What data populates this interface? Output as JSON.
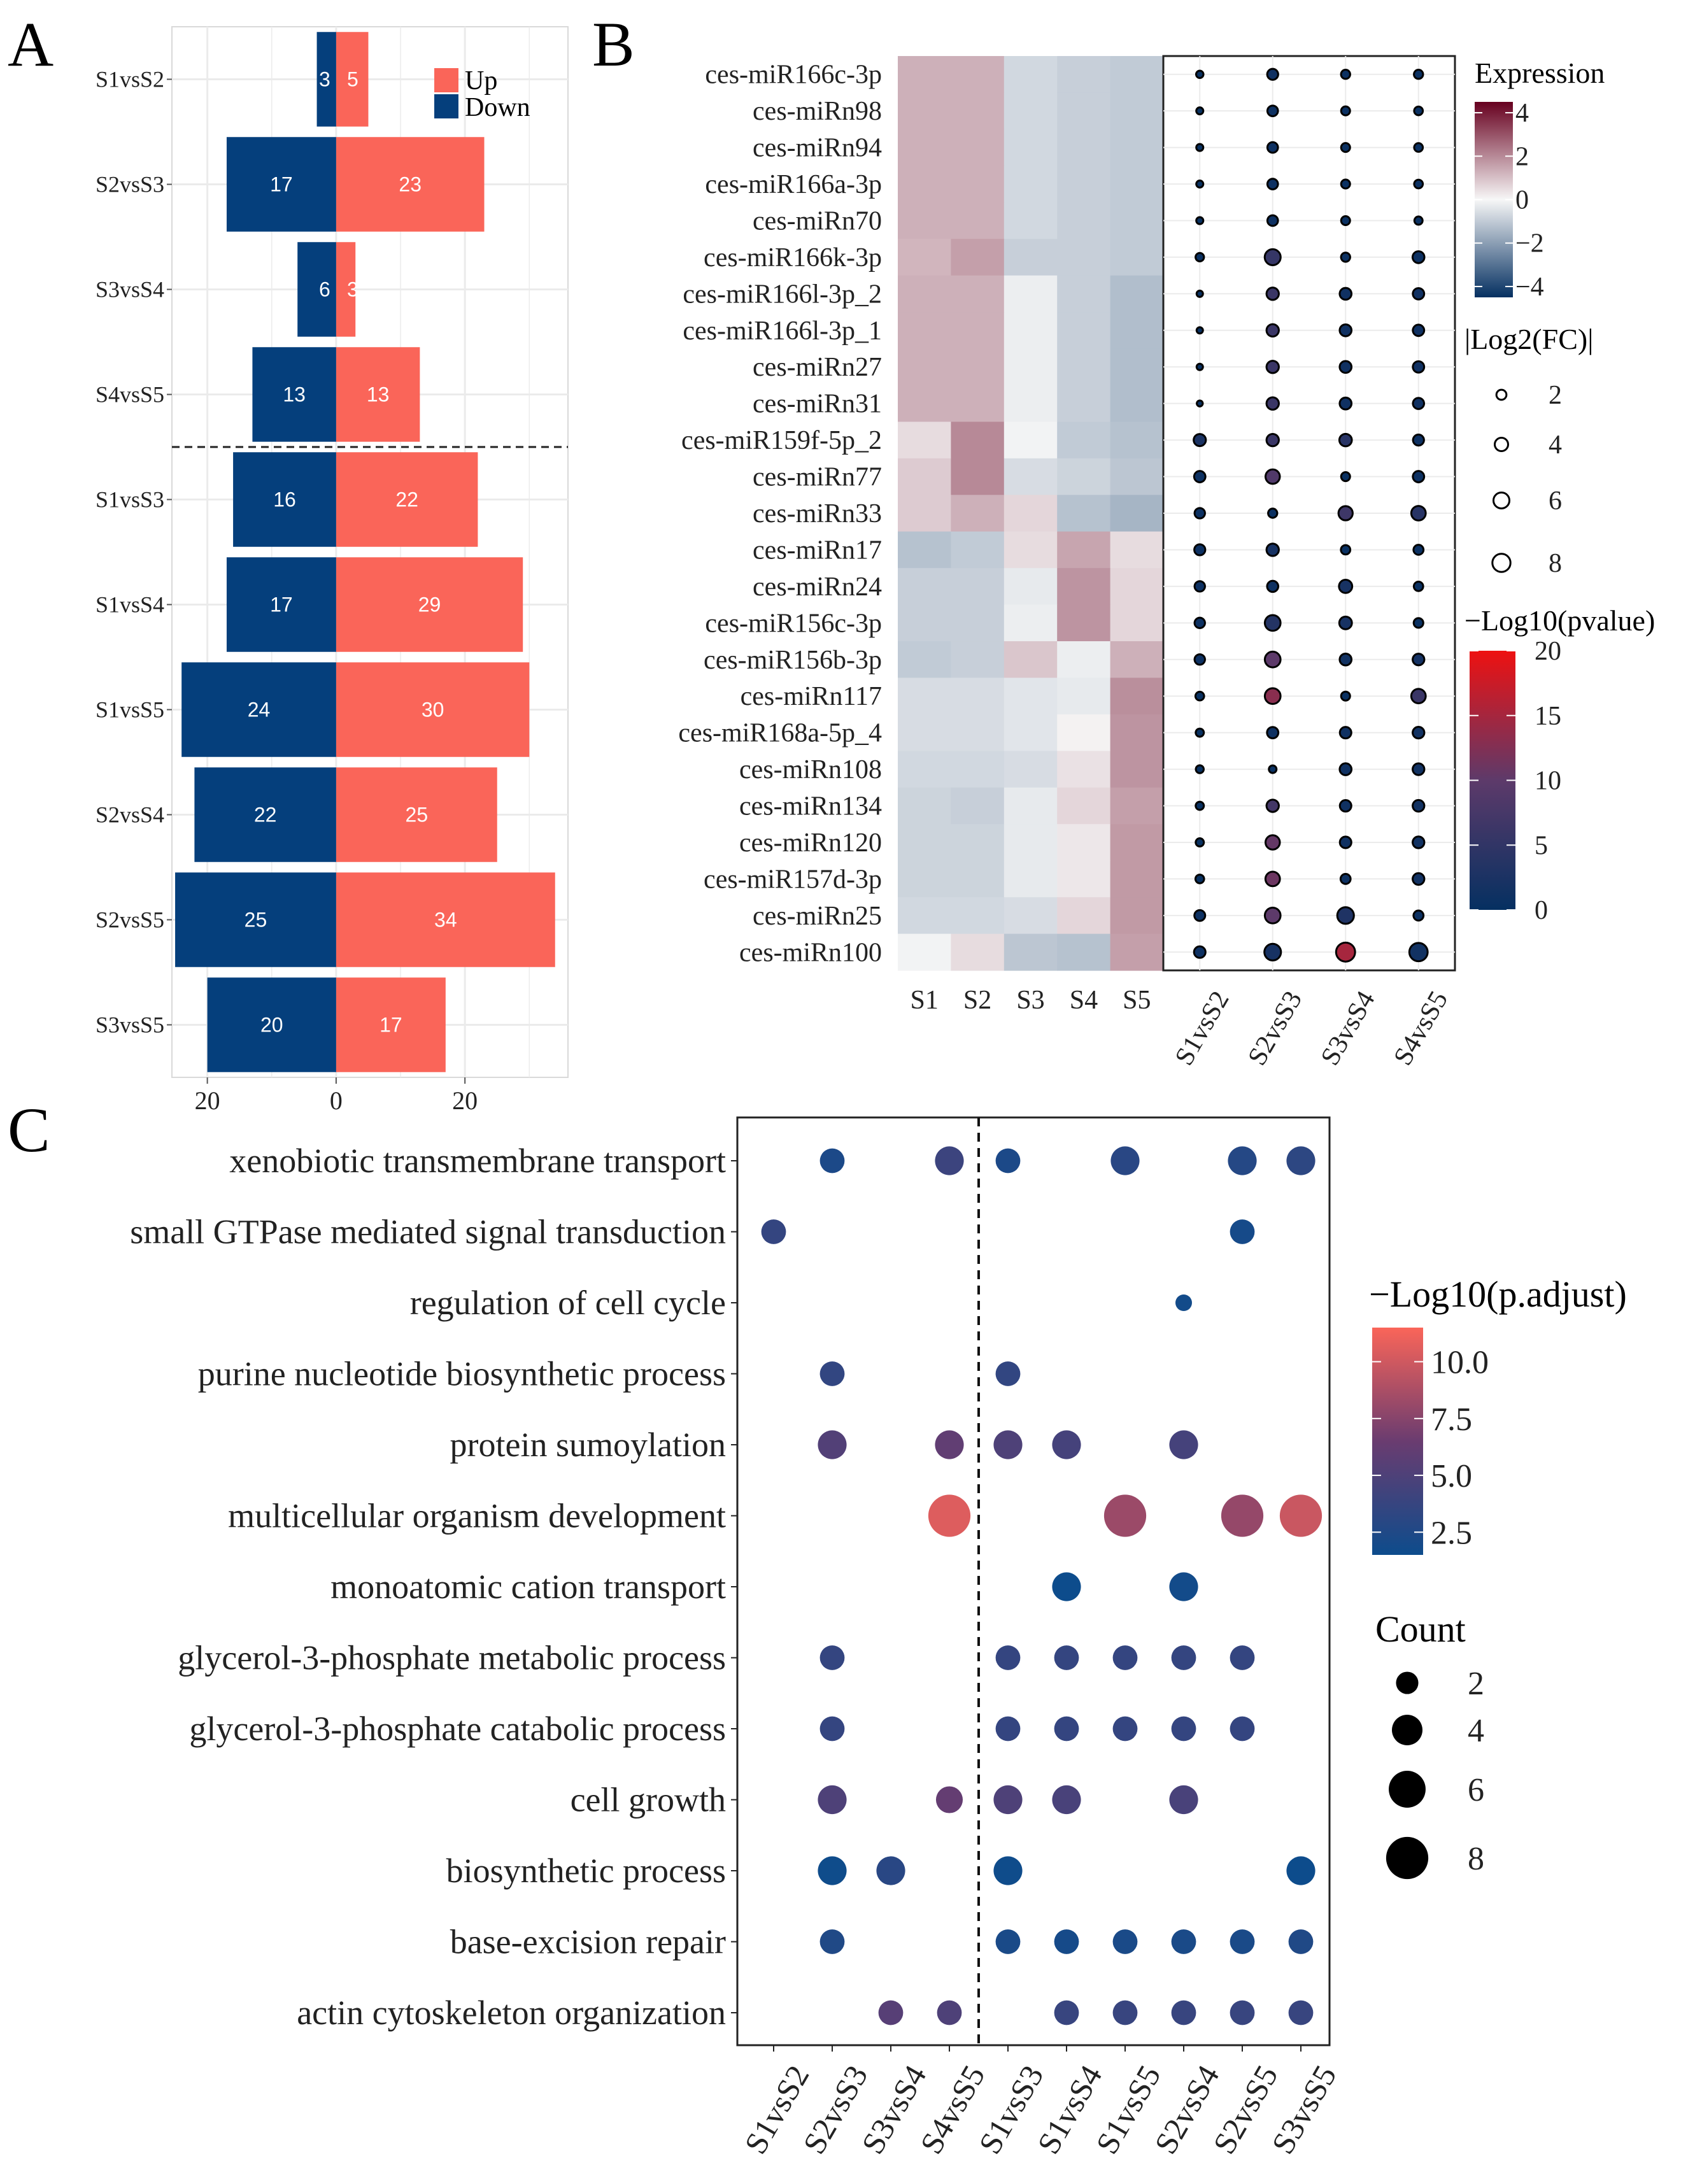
{
  "panel_labels": {
    "a": "A",
    "b": "B",
    "c": "C"
  },
  "colors": {
    "up": "#FA6559",
    "down": "#053F7C",
    "grid": "#EBEBEB",
    "heat_low": "#053061",
    "heat_mid": "#F7F7F7",
    "heat_high": "#67001F",
    "pv_low": "#053061",
    "pv_mid": "#5D3A6A",
    "pv_high": "#EE1111",
    "go_low": "#0D4C8C",
    "go_mid": "#6A3C70",
    "go_high": "#FA6559"
  },
  "chart_data": [
    {
      "id": "A",
      "type": "bar",
      "orientation": "horizontal",
      "title": "",
      "categories": [
        "S1vsS2",
        "S2vsS3",
        "S3vsS4",
        "S4vsS5",
        "S1vsS3",
        "S1vsS4",
        "S1vsS5",
        "S2vsS4",
        "S2vsS5",
        "S3vsS5"
      ],
      "series": [
        {
          "name": "Up",
          "values": [
            5,
            23,
            3,
            13,
            22,
            29,
            30,
            25,
            34,
            17
          ]
        },
        {
          "name": "Down",
          "values": [
            3,
            17,
            6,
            13,
            16,
            17,
            24,
            22,
            25,
            20
          ]
        }
      ],
      "legend": [
        "Up",
        "Down"
      ],
      "xticks": [
        "20",
        "0",
        "20"
      ],
      "xlim": [
        -25.5,
        36
      ],
      "xtick_values": [
        -20,
        0,
        20
      ],
      "separator_after": 4
    },
    {
      "id": "B-heatmap",
      "type": "heatmap",
      "rows": [
        "ces-miR166c-3p",
        "ces-miRn98",
        "ces-miRn94",
        "ces-miR166a-3p",
        "ces-miRn70",
        "ces-miR166k-3p",
        "ces-miR166l-3p_2",
        "ces-miR166l-3p_1",
        "ces-miRn27",
        "ces-miRn31",
        "ces-miR159f-5p_2",
        "ces-miRn77",
        "ces-miRn33",
        "ces-miRn17",
        "ces-miRn24",
        "ces-miR156c-3p",
        "ces-miR156b-3p",
        "ces-miRn117",
        "ces-miR168a-5p_4",
        "ces-miRn108",
        "ces-miRn134",
        "ces-miRn120",
        "ces-miR157d-3p",
        "ces-miRn25",
        "ces-miRn100"
      ],
      "columns": [
        "S1",
        "S2",
        "S3",
        "S4",
        "S5"
      ],
      "values": [
        [
          1.3,
          1.3,
          -0.7,
          -0.9,
          -1.0
        ],
        [
          1.3,
          1.3,
          -0.7,
          -0.9,
          -1.0
        ],
        [
          1.3,
          1.3,
          -0.7,
          -0.9,
          -1.0
        ],
        [
          1.3,
          1.3,
          -0.7,
          -0.9,
          -1.0
        ],
        [
          1.3,
          1.3,
          -0.7,
          -0.9,
          -1.0
        ],
        [
          1.2,
          1.6,
          -0.9,
          -0.9,
          -1.0
        ],
        [
          1.3,
          1.3,
          -0.2,
          -0.9,
          -1.3
        ],
        [
          1.3,
          1.3,
          -0.2,
          -0.9,
          -1.3
        ],
        [
          1.3,
          1.3,
          -0.2,
          -0.9,
          -1.3
        ],
        [
          1.3,
          1.3,
          -0.2,
          -0.9,
          -1.3
        ],
        [
          0.5,
          2.0,
          -0.1,
          -1.0,
          -1.2
        ],
        [
          0.8,
          2.0,
          -0.6,
          -0.8,
          -1.1
        ],
        [
          0.8,
          1.3,
          0.6,
          -1.2,
          -1.5
        ],
        [
          -1.2,
          -1.0,
          0.5,
          1.5,
          0.5
        ],
        [
          -0.9,
          -0.9,
          -0.3,
          1.8,
          0.6
        ],
        [
          -0.9,
          -0.9,
          -0.2,
          1.8,
          0.6
        ],
        [
          -1.0,
          -0.9,
          0.9,
          -0.2,
          1.3
        ],
        [
          -0.6,
          -0.6,
          -0.4,
          -0.3,
          1.9
        ],
        [
          -0.6,
          -0.6,
          -0.4,
          0.1,
          1.8
        ],
        [
          -0.7,
          -0.7,
          -0.6,
          0.4,
          1.8
        ],
        [
          -0.8,
          -0.9,
          -0.3,
          0.6,
          1.6
        ],
        [
          -0.8,
          -0.8,
          -0.3,
          0.3,
          1.7
        ],
        [
          -0.8,
          -0.8,
          -0.3,
          0.3,
          1.7
        ],
        [
          -0.7,
          -0.7,
          -0.6,
          0.6,
          1.7
        ],
        [
          -0.1,
          0.5,
          -1.1,
          -1.2,
          1.6
        ]
      ],
      "legend_title": "Expression",
      "colorbar_ticks": [
        4,
        2,
        0,
        -2,
        -4
      ],
      "colorbar_labels": [
        "4",
        "2",
        "0",
        "−2",
        "−4"
      ],
      "vlim": [
        -4.5,
        4.5
      ]
    },
    {
      "id": "B-dotplot",
      "type": "scatter",
      "rows": [
        "ces-miR166c-3p",
        "ces-miRn98",
        "ces-miRn94",
        "ces-miR166a-3p",
        "ces-miRn70",
        "ces-miR166k-3p",
        "ces-miR166l-3p_2",
        "ces-miR166l-3p_1",
        "ces-miRn27",
        "ces-miRn31",
        "ces-miR159f-5p_2",
        "ces-miRn77",
        "ces-miRn33",
        "ces-miRn17",
        "ces-miRn24",
        "ces-miR156c-3p",
        "ces-miR156b-3p",
        "ces-miRn117",
        "ces-miR168a-5p_4",
        "ces-miRn108",
        "ces-miRn134",
        "ces-miRn120",
        "ces-miR157d-3p",
        "ces-miRn25",
        "ces-miRn100"
      ],
      "columns": [
        "S1vsS2",
        "S2vsS3",
        "S3vsS4",
        "S4vsS5"
      ],
      "log2fc": [
        [
          0.9,
          2.5,
          1.6,
          1.6
        ],
        [
          0.8,
          2.3,
          1.5,
          1.4
        ],
        [
          0.8,
          2.3,
          1.5,
          1.4
        ],
        [
          0.8,
          2.3,
          1.5,
          1.4
        ],
        [
          0.8,
          2.3,
          1.5,
          1.2
        ],
        [
          1.3,
          6.0,
          1.6,
          3.0
        ],
        [
          0.6,
          3.3,
          3.0,
          2.7
        ],
        [
          0.6,
          3.3,
          3.0,
          2.7
        ],
        [
          0.6,
          3.3,
          3.0,
          2.7
        ],
        [
          0.5,
          3.3,
          3.0,
          2.6
        ],
        [
          3.2,
          3.3,
          3.4,
          2.5
        ],
        [
          2.7,
          4.7,
          1.5,
          2.7
        ],
        [
          2.2,
          1.6,
          4.6,
          4.8
        ],
        [
          2.5,
          3.3,
          1.7,
          2.0
        ],
        [
          2.2,
          2.6,
          3.9,
          1.7
        ],
        [
          2.2,
          5.8,
          3.5,
          1.8
        ],
        [
          2.2,
          5.8,
          3.0,
          2.9
        ],
        [
          1.4,
          5.8,
          1.5,
          4.8
        ],
        [
          1.2,
          2.7,
          2.8,
          2.9
        ],
        [
          1.1,
          1.0,
          3.0,
          2.9
        ],
        [
          1.2,
          3.3,
          2.8,
          2.9
        ],
        [
          1.2,
          4.7,
          2.8,
          2.9
        ],
        [
          1.4,
          4.8,
          2.0,
          2.9
        ],
        [
          2.4,
          5.8,
          6.6,
          2.0
        ],
        [
          2.8,
          6.6,
          8.9,
          8.2
        ]
      ],
      "neglog10p": [
        [
          0.5,
          1.2,
          0.8,
          0.7
        ],
        [
          0.5,
          1.0,
          0.7,
          0.7
        ],
        [
          0.5,
          1.0,
          0.7,
          0.7
        ],
        [
          0.5,
          1.0,
          0.7,
          0.7
        ],
        [
          0.5,
          1.0,
          0.7,
          0.7
        ],
        [
          0.6,
          5.5,
          0.8,
          0.9
        ],
        [
          0.3,
          6.0,
          1.2,
          1.2
        ],
        [
          0.3,
          6.0,
          1.2,
          1.2
        ],
        [
          0.3,
          6.0,
          1.2,
          1.2
        ],
        [
          0.3,
          6.0,
          1.2,
          1.2
        ],
        [
          2.5,
          6.0,
          4.0,
          1.0
        ],
        [
          0.9,
          8.5,
          0.6,
          0.9
        ],
        [
          0.8,
          0.8,
          6.5,
          4.0
        ],
        [
          0.9,
          2.0,
          0.6,
          0.8
        ],
        [
          0.9,
          1.0,
          2.0,
          0.6
        ],
        [
          0.9,
          3.5,
          2.0,
          0.6
        ],
        [
          0.9,
          10.0,
          1.5,
          1.8
        ],
        [
          0.5,
          13.0,
          0.6,
          6.0
        ],
        [
          0.5,
          1.0,
          1.2,
          1.5
        ],
        [
          0.5,
          0.6,
          1.2,
          1.5
        ],
        [
          0.5,
          7.0,
          1.2,
          1.5
        ],
        [
          0.5,
          10.5,
          1.2,
          1.5
        ],
        [
          0.5,
          11.0,
          0.9,
          1.5
        ],
        [
          0.9,
          10.0,
          3.0,
          0.8
        ],
        [
          1.0,
          2.0,
          15.0,
          1.5
        ]
      ],
      "size_legend_title": "|Log2(FC)|",
      "size_legend_values": [
        2,
        4,
        6,
        8
      ],
      "size_legend_labels": [
        "2",
        "4",
        "6",
        "8"
      ],
      "color_legend_title": "−Log10(pvalue)",
      "colorbar_ticks": [
        20,
        15,
        10,
        5,
        0
      ],
      "colorbar_labels": [
        "20",
        "15",
        "10",
        "5",
        "0"
      ],
      "vlim": [
        0,
        20
      ]
    },
    {
      "id": "C",
      "type": "scatter",
      "rows": [
        "xenobiotic transmembrane transport",
        "small GTPase mediated signal transduction",
        "regulation of cell cycle",
        "purine nucleotide biosynthetic process",
        "protein sumoylation",
        "multicellular organism development",
        "monoatomic cation transport",
        "glycerol-3-phosphate metabolic process",
        "glycerol-3-phosphate catabolic process",
        "cell growth",
        "biosynthetic process",
        "base-excision repair",
        "actin cytoskeleton organization"
      ],
      "columns": [
        "S1vsS2",
        "S2vsS3",
        "S3vsS4",
        "S4vsS5",
        "S1vsS3",
        "S1vsS4",
        "S1vsS5",
        "S2vsS4",
        "S2vsS5",
        "S3vsS5"
      ],
      "points": [
        {
          "row": 0,
          "col": 1,
          "count": 2.5,
          "padj": 2.3
        },
        {
          "row": 0,
          "col": 3,
          "count": 3.5,
          "padj": 4.0
        },
        {
          "row": 0,
          "col": 4,
          "count": 2.5,
          "padj": 2.3
        },
        {
          "row": 0,
          "col": 6,
          "count": 3.5,
          "padj": 3.0
        },
        {
          "row": 0,
          "col": 8,
          "count": 3.5,
          "padj": 2.8
        },
        {
          "row": 0,
          "col": 9,
          "count": 3.5,
          "padj": 3.2
        },
        {
          "row": 1,
          "col": 0,
          "count": 2.5,
          "padj": 3.6
        },
        {
          "row": 1,
          "col": 8,
          "count": 2.5,
          "padj": 2.0
        },
        {
          "row": 2,
          "col": 7,
          "count": 1.0,
          "padj": 1.8
        },
        {
          "row": 3,
          "col": 1,
          "count": 2.5,
          "padj": 3.5
        },
        {
          "row": 3,
          "col": 4,
          "count": 2.5,
          "padj": 3.5
        },
        {
          "row": 4,
          "col": 1,
          "count": 3.5,
          "padj": 5.2
        },
        {
          "row": 4,
          "col": 3,
          "count": 3.5,
          "padj": 6.0
        },
        {
          "row": 4,
          "col": 4,
          "count": 3.5,
          "padj": 5.0
        },
        {
          "row": 4,
          "col": 5,
          "count": 3.5,
          "padj": 4.5
        },
        {
          "row": 4,
          "col": 7,
          "count": 3.5,
          "padj": 4.5
        },
        {
          "row": 5,
          "col": 3,
          "count": 8,
          "padj": 10.5
        },
        {
          "row": 5,
          "col": 6,
          "count": 8,
          "padj": 8.2
        },
        {
          "row": 5,
          "col": 8,
          "count": 8,
          "padj": 8.0
        },
        {
          "row": 5,
          "col": 9,
          "count": 8,
          "padj": 9.8
        },
        {
          "row": 6,
          "col": 5,
          "count": 3.5,
          "padj": 1.5
        },
        {
          "row": 6,
          "col": 7,
          "count": 3.5,
          "padj": 1.8
        },
        {
          "row": 7,
          "col": 1,
          "count": 2.5,
          "padj": 3.6
        },
        {
          "row": 7,
          "col": 4,
          "count": 2.5,
          "padj": 3.6
        },
        {
          "row": 7,
          "col": 5,
          "count": 2.5,
          "padj": 3.6
        },
        {
          "row": 7,
          "col": 6,
          "count": 2.5,
          "padj": 3.6
        },
        {
          "row": 7,
          "col": 7,
          "count": 2.5,
          "padj": 3.6
        },
        {
          "row": 7,
          "col": 8,
          "count": 2.5,
          "padj": 3.6
        },
        {
          "row": 8,
          "col": 1,
          "count": 2.5,
          "padj": 3.6
        },
        {
          "row": 8,
          "col": 4,
          "count": 2.5,
          "padj": 3.6
        },
        {
          "row": 8,
          "col": 5,
          "count": 2.5,
          "padj": 3.6
        },
        {
          "row": 8,
          "col": 6,
          "count": 2.5,
          "padj": 3.6
        },
        {
          "row": 8,
          "col": 7,
          "count": 2.5,
          "padj": 3.6
        },
        {
          "row": 8,
          "col": 8,
          "count": 2.5,
          "padj": 3.6
        },
        {
          "row": 9,
          "col": 1,
          "count": 3.5,
          "padj": 5.0
        },
        {
          "row": 9,
          "col": 3,
          "count": 3.0,
          "padj": 6.2
        },
        {
          "row": 9,
          "col": 4,
          "count": 3.5,
          "padj": 5.0
        },
        {
          "row": 9,
          "col": 5,
          "count": 3.5,
          "padj": 4.7
        },
        {
          "row": 9,
          "col": 7,
          "count": 3.5,
          "padj": 4.7
        },
        {
          "row": 10,
          "col": 1,
          "count": 3.5,
          "padj": 1.6
        },
        {
          "row": 10,
          "col": 2,
          "count": 3.5,
          "padj": 3.0
        },
        {
          "row": 10,
          "col": 4,
          "count": 3.5,
          "padj": 1.6
        },
        {
          "row": 10,
          "col": 9,
          "count": 3.5,
          "padj": 1.5
        },
        {
          "row": 11,
          "col": 1,
          "count": 2.5,
          "padj": 2.5
        },
        {
          "row": 11,
          "col": 4,
          "count": 2.5,
          "padj": 2.2
        },
        {
          "row": 11,
          "col": 5,
          "count": 2.5,
          "padj": 2.0
        },
        {
          "row": 11,
          "col": 6,
          "count": 2.5,
          "padj": 2.2
        },
        {
          "row": 11,
          "col": 7,
          "count": 2.5,
          "padj": 2.2
        },
        {
          "row": 11,
          "col": 8,
          "count": 2.5,
          "padj": 2.2
        },
        {
          "row": 11,
          "col": 9,
          "count": 2.5,
          "padj": 2.5
        },
        {
          "row": 12,
          "col": 2,
          "count": 2.5,
          "padj": 5.5
        },
        {
          "row": 12,
          "col": 3,
          "count": 2.5,
          "padj": 5.0
        },
        {
          "row": 12,
          "col": 5,
          "count": 2.5,
          "padj": 3.8
        },
        {
          "row": 12,
          "col": 6,
          "count": 2.5,
          "padj": 3.8
        },
        {
          "row": 12,
          "col": 7,
          "count": 2.5,
          "padj": 3.8
        },
        {
          "row": 12,
          "col": 8,
          "count": 2.5,
          "padj": 3.8
        },
        {
          "row": 12,
          "col": 9,
          "count": 2.5,
          "padj": 3.8
        }
      ],
      "separator_after_col": 3,
      "color_legend_title": "−Log10(p.adjust)",
      "colorbar_ticks": [
        10,
        7.5,
        5,
        2.5
      ],
      "colorbar_labels": [
        "10.0",
        "7.5",
        "5.0",
        "2.5"
      ],
      "vlim": [
        1.5,
        11.5
      ],
      "size_legend_title": "Count",
      "size_legend_values": [
        2,
        4,
        6,
        8
      ],
      "size_legend_labels": [
        "2",
        "4",
        "6",
        "8"
      ]
    }
  ]
}
